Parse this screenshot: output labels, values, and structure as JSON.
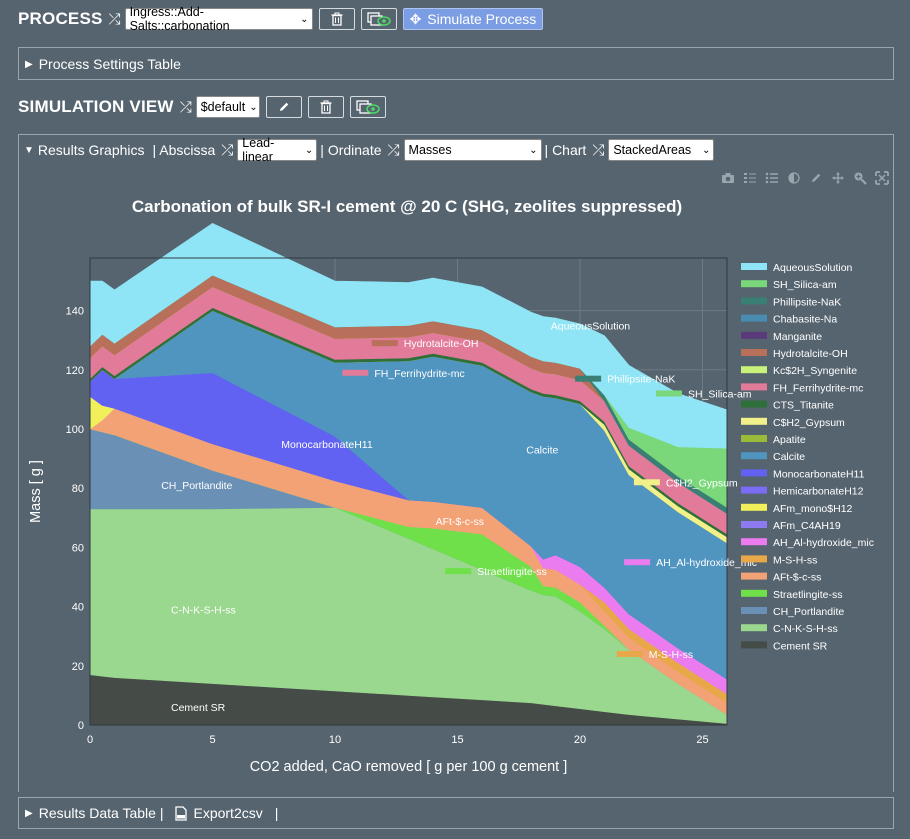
{
  "process": {
    "title": "PROCESS",
    "select_value": "Ingress::Add-Salts::carbonation",
    "simulate_label": "Simulate Process"
  },
  "process_settings": {
    "label": "Process Settings Table"
  },
  "simulation": {
    "title": "SIMULATION VIEW",
    "select_value": "$default"
  },
  "results_bar": {
    "graphics_label": "Results Graphics",
    "abscissa_label": "| Abscissa",
    "abscissa_value": "Lead-linear",
    "ordinate_label": "| Ordinate",
    "ordinate_value": "Masses",
    "chart_label": "| Chart",
    "chart_value": "StackedAreas"
  },
  "data_table": {
    "label": "Results Data Table |",
    "export_label": "Export2csv",
    "trail": "|"
  },
  "chart_data": {
    "type": "area",
    "title": "Carbonation of bulk SR-I cement @ 20 C (SHG, zeolites suppressed)",
    "xlabel": "CO2 added, CaO removed [ g per 100 g cement ]",
    "ylabel": "Mass [ g ]",
    "xlim": [
      0,
      26
    ],
    "ylim": [
      0,
      150
    ],
    "xticks": [
      0,
      5,
      10,
      15,
      20,
      25
    ],
    "yticks": [
      0,
      20,
      40,
      60,
      80,
      100,
      120,
      140
    ],
    "legend_position": "right",
    "x": [
      0,
      0.5,
      1,
      5,
      10,
      13,
      14,
      16,
      18,
      18.5,
      19,
      20,
      21,
      22,
      24,
      26
    ],
    "series": [
      {
        "name": "Cement SR",
        "color": "#454b47",
        "values": [
          17,
          16.5,
          16,
          14,
          11.5,
          10,
          9.5,
          8.5,
          7.5,
          7,
          6.5,
          5.5,
          4.5,
          3.5,
          2,
          0.5
        ]
      },
      {
        "name": "C-N-K-S-H-ss",
        "color": "#9ad88f",
        "values": [
          56,
          56.5,
          57,
          59,
          62,
          53,
          50,
          44,
          38,
          37,
          37,
          33,
          28,
          22,
          12,
          3
        ]
      },
      {
        "name": "CH_Portlandite",
        "color": "#6a90b5",
        "values": [
          27,
          26,
          25,
          13,
          0,
          0,
          0,
          0,
          0,
          0,
          0,
          0,
          0,
          0,
          0,
          0
        ]
      },
      {
        "name": "Straetlingite-ss",
        "color": "#6fe04a",
        "values": [
          0,
          0,
          0,
          0,
          0,
          4,
          7,
          12,
          8,
          3,
          3,
          3,
          1,
          0,
          0,
          0
        ]
      },
      {
        "name": "AFt-$-c-ss",
        "color": "#f3a276",
        "values": [
          0,
          4,
          9,
          9,
          9,
          9,
          9,
          9,
          7,
          6,
          6,
          6,
          5,
          4,
          4,
          4
        ]
      },
      {
        "name": "M-S-H-ss",
        "color": "#e8a84a",
        "values": [
          0,
          0,
          0,
          0,
          0,
          0,
          0,
          0,
          0,
          0,
          0,
          0,
          3,
          3,
          3,
          3
        ]
      },
      {
        "name": "AH_Al-hydroxide_mic",
        "color": "#ea7cf0",
        "values": [
          0,
          0,
          0,
          0,
          0,
          0,
          0,
          0,
          0,
          3,
          5,
          6,
          5,
          5,
          5,
          5
        ]
      },
      {
        "name": "AFm_C4AH19",
        "color": "#8e7bf2",
        "values": [
          0,
          0,
          0,
          0,
          0,
          0,
          0,
          0,
          0,
          0,
          0,
          0,
          0,
          0,
          0,
          0
        ]
      },
      {
        "name": "AFm_mono$H12",
        "color": "#f2f05a",
        "values": [
          11,
          5,
          0,
          0,
          0,
          0,
          0,
          0,
          0,
          0,
          0,
          0,
          0,
          0,
          0,
          0
        ]
      },
      {
        "name": "HemicarbonateH12",
        "color": "#7a6cf4",
        "values": [
          0,
          0,
          0,
          0,
          0,
          0,
          0,
          0,
          0,
          0,
          0,
          0,
          0,
          0,
          0,
          0
        ]
      },
      {
        "name": "MonocarbonateH11",
        "color": "#6161f2",
        "values": [
          5,
          12,
          10,
          24,
          15,
          0,
          0,
          0,
          0,
          0,
          0,
          0,
          0,
          0,
          0,
          0
        ]
      },
      {
        "name": "Calcite",
        "color": "#5094c0",
        "values": [
          0,
          0,
          0,
          21,
          25,
          47,
          49,
          48,
          52,
          55,
          53,
          55,
          53,
          47,
          46,
          46
        ]
      },
      {
        "name": "Apatite",
        "color": "#9abb3a",
        "values": [
          0,
          0,
          0,
          0,
          0,
          0,
          0,
          0,
          0,
          0,
          0,
          0,
          0,
          0,
          0,
          0
        ]
      },
      {
        "name": "C$H2_Gypsum",
        "color": "#f2f08a",
        "values": [
          0,
          0,
          0,
          0,
          0,
          0,
          0,
          0,
          0,
          0,
          0,
          0,
          2,
          2,
          2,
          2
        ]
      },
      {
        "name": "CTS_Titanite",
        "color": "#2f6f3a",
        "values": [
          1,
          1,
          1,
          1,
          1,
          1,
          1,
          1,
          1,
          1,
          1,
          1,
          1,
          1,
          1,
          1
        ]
      },
      {
        "name": "FH_Ferrihydrite-mc",
        "color": "#e27a9a",
        "values": [
          7,
          7,
          7,
          7,
          7,
          7,
          7,
          7,
          7,
          7,
          7,
          7,
          7,
          7,
          7,
          7
        ]
      },
      {
        "name": "Kc$2H_Syngenite",
        "color": "#c8f27a",
        "values": [
          0,
          0,
          0,
          0,
          0,
          0,
          0,
          0,
          0,
          0,
          0,
          0,
          0,
          0,
          0,
          0
        ]
      },
      {
        "name": "Hydrotalcite-OH",
        "color": "#b9705a",
        "values": [
          4,
          4,
          4,
          4,
          4,
          4,
          4,
          4,
          4,
          4,
          4,
          4,
          0,
          0,
          0,
          0
        ]
      },
      {
        "name": "Manganite",
        "color": "#5a3a7a",
        "values": [
          0,
          0,
          0,
          0,
          0,
          0,
          0,
          0,
          0,
          0,
          0,
          0,
          0,
          0,
          0,
          0
        ]
      },
      {
        "name": "Chabasite-Na",
        "color": "#4a8cb0",
        "values": [
          0,
          0,
          0,
          0,
          0,
          0,
          0,
          0,
          0,
          0,
          0,
          0,
          0,
          0,
          0,
          0
        ]
      },
      {
        "name": "Phillipsite-NaK",
        "color": "#3a7f74",
        "values": [
          0,
          0,
          0,
          0,
          0,
          0,
          0,
          0,
          0,
          0,
          0,
          0,
          2,
          2,
          2,
          2
        ]
      },
      {
        "name": "SH_Silica-am",
        "color": "#7bd87a",
        "values": [
          0,
          0,
          0,
          0,
          0,
          0,
          0,
          0,
          0,
          0,
          0,
          0,
          0,
          4,
          10,
          20
        ]
      },
      {
        "name": "AqueousSolution",
        "color": "#8fe5f5",
        "values": [
          22,
          18,
          18,
          17.5,
          15.5,
          14.5,
          14.5,
          14.5,
          15,
          15,
          15,
          15,
          20,
          21,
          18,
          13
        ]
      }
    ],
    "legend": [
      "AqueousSolution",
      "SH_Silica-am",
      "Phillipsite-NaK",
      "Chabasite-Na",
      "Manganite",
      "Hydrotalcite-OH",
      "Kc$2H_Syngenite",
      "FH_Ferrihydrite-mc",
      "CTS_Titanite",
      "C$H2_Gypsum",
      "Apatite",
      "Calcite",
      "MonocarbonateH11",
      "HemicarbonateH12",
      "AFm_mono$H12",
      "AFm_C4AH19",
      "AH_Al-hydroxide_mic",
      "M-S-H-ss",
      "AFt-$-c-ss",
      "Straetlingite-ss",
      "CH_Portlandite",
      "C-N-K-S-H-ss",
      "Cement SR"
    ],
    "annotations": [
      {
        "text": "AqueousSolution",
        "x": 17.5,
        "y": 135
      },
      {
        "text": "Hydrotalcite-OH",
        "x": 11.5,
        "y": 129
      },
      {
        "text": "FH_Ferrihydrite-mc",
        "x": 10.3,
        "y": 119
      },
      {
        "text": "Phillipsite-NaK",
        "x": 19.8,
        "y": 117
      },
      {
        "text": "SH_Silica-am",
        "x": 23.1,
        "y": 112
      },
      {
        "text": "MonocarbonateH11",
        "x": 6.5,
        "y": 95
      },
      {
        "text": "Calcite",
        "x": 16.5,
        "y": 93
      },
      {
        "text": "CH_Portlandite",
        "x": 1.6,
        "y": 81
      },
      {
        "text": "C$H2_Gypsum",
        "x": 22.2,
        "y": 82
      },
      {
        "text": "AFt-$-c-ss",
        "x": 12.8,
        "y": 69
      },
      {
        "text": "Straetlingite-ss",
        "x": 14.5,
        "y": 52
      },
      {
        "text": "AH_Al-hydroxide_mic",
        "x": 21.8,
        "y": 55
      },
      {
        "text": "C-N-K-S-H-ss",
        "x": 2,
        "y": 39
      },
      {
        "text": "M-S-H-ss",
        "x": 21.5,
        "y": 24
      },
      {
        "text": "Cement SR",
        "x": 2,
        "y": 6
      }
    ]
  }
}
